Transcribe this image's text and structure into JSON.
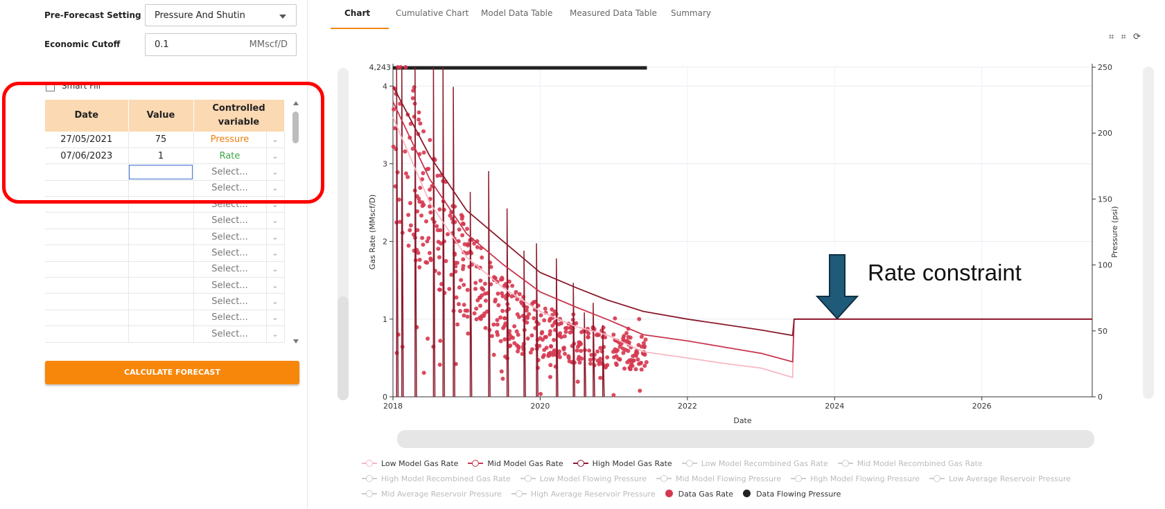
{
  "settings": {
    "pre_forecast_label": "Pre-Forecast Setting",
    "pre_forecast_value": "Pressure And Shutin",
    "economic_cutoff_label": "Economic Cutoff",
    "economic_cutoff_value": "0.1",
    "economic_cutoff_unit": "MMscf/D",
    "smart_fill_label": "Smart Fill"
  },
  "grid": {
    "headers": {
      "date": "Date",
      "value": "Value",
      "cv_line1": "Controlled",
      "cv_line2": "variable"
    },
    "rows": [
      {
        "date": "27/05/2021",
        "value": "75",
        "cv": "Pressure"
      },
      {
        "date": "07/06/2023",
        "value": "1",
        "cv": "Rate"
      },
      {
        "date": "",
        "value": "",
        "cv": "Select..."
      },
      {
        "date": "",
        "value": "",
        "cv": "Select..."
      },
      {
        "date": "",
        "value": "",
        "cv": "Select..."
      },
      {
        "date": "",
        "value": "",
        "cv": "Select..."
      },
      {
        "date": "",
        "value": "",
        "cv": "Select..."
      },
      {
        "date": "",
        "value": "",
        "cv": "Select..."
      },
      {
        "date": "",
        "value": "",
        "cv": "Select..."
      },
      {
        "date": "",
        "value": "",
        "cv": "Select..."
      },
      {
        "date": "",
        "value": "",
        "cv": "Select..."
      },
      {
        "date": "",
        "value": "",
        "cv": "Select..."
      },
      {
        "date": "",
        "value": "",
        "cv": "Select..."
      }
    ]
  },
  "calculate_button": "CALCULATE FORECAST",
  "tabs": [
    "Chart",
    "Cumulative Chart",
    "Model Data Table",
    "Measured Data Table",
    "Summary"
  ],
  "tool_icons": [
    "crop-icon",
    "crop-reset-icon",
    "refresh-icon"
  ],
  "annotation": "Rate constraint",
  "colors": {
    "accent": "#f7870a",
    "low": "#f7b7c2",
    "mid": "#c9364e",
    "high": "#8a1a2c",
    "data_gas": "#d6374f",
    "data_pressure": "#222222",
    "highlight_box": "#ff0000",
    "arrow": "#1f5a78"
  },
  "chart_data": {
    "type": "line",
    "xlabel": "Date",
    "ylabel_left": "Gas Rate (MMscf/D)",
    "ylabel_right": "Pressure (psi)",
    "x_ticks": [
      "2018",
      "2020",
      "2022",
      "2024",
      "2026"
    ],
    "y_left_ticks": [
      "0",
      "1",
      "2",
      "3",
      "4"
    ],
    "y_left_max_label": "4,243",
    "y_left_range": [
      0,
      4.243
    ],
    "y_right_ticks": [
      "0",
      "50",
      "100",
      "150",
      "200",
      "250"
    ],
    "y_right_range": [
      0,
      250
    ],
    "x_range": [
      2018.0,
      2027.5
    ],
    "series": [
      {
        "name": "Low Model Gas Rate",
        "color": "#f7b7c2",
        "points": [
          [
            2018.0,
            3.6
          ],
          [
            2018.5,
            2.5
          ],
          [
            2019.0,
            1.8
          ],
          [
            2019.5,
            1.4
          ],
          [
            2020.0,
            1.1
          ],
          [
            2020.5,
            0.9
          ],
          [
            2020.9,
            0.8
          ],
          [
            2021.4,
            0.58
          ],
          [
            2022.0,
            0.5
          ],
          [
            2022.5,
            0.43
          ],
          [
            2023.0,
            0.37
          ],
          [
            2023.43,
            0.25
          ],
          [
            2023.45,
            1.0
          ],
          [
            2027.5,
            1.0
          ]
        ]
      },
      {
        "name": "Mid Model Gas Rate",
        "color": "#c9364e",
        "points": [
          [
            2018.0,
            3.8
          ],
          [
            2018.5,
            2.8
          ],
          [
            2019.0,
            2.1
          ],
          [
            2019.5,
            1.7
          ],
          [
            2020.0,
            1.35
          ],
          [
            2020.5,
            1.15
          ],
          [
            2020.9,
            1.0
          ],
          [
            2021.4,
            0.8
          ],
          [
            2022.0,
            0.72
          ],
          [
            2022.5,
            0.64
          ],
          [
            2023.0,
            0.56
          ],
          [
            2023.43,
            0.45
          ],
          [
            2023.45,
            1.0
          ],
          [
            2027.5,
            1.0
          ]
        ]
      },
      {
        "name": "High Model Gas Rate",
        "color": "#8a1a2c",
        "points": [
          [
            2018.0,
            4.0
          ],
          [
            2018.5,
            3.1
          ],
          [
            2019.0,
            2.4
          ],
          [
            2019.5,
            2.0
          ],
          [
            2020.0,
            1.6
          ],
          [
            2020.5,
            1.4
          ],
          [
            2020.9,
            1.25
          ],
          [
            2021.4,
            1.1
          ],
          [
            2022.0,
            1.0
          ],
          [
            2022.5,
            0.93
          ],
          [
            2023.0,
            0.86
          ],
          [
            2023.43,
            0.79
          ],
          [
            2023.45,
            1.0
          ],
          [
            2027.5,
            1.0
          ]
        ]
      }
    ],
    "legend": [
      {
        "label": "Low Model Gas Rate",
        "state": "on",
        "kind": "low"
      },
      {
        "label": "Mid Model Gas Rate",
        "state": "on",
        "kind": "mid"
      },
      {
        "label": "High Model Gas Rate",
        "state": "on",
        "kind": "high"
      },
      {
        "label": "Low Model Recombined Gas Rate",
        "state": "off",
        "kind": "off"
      },
      {
        "label": "Mid Model Recombined Gas Rate",
        "state": "off",
        "kind": "off"
      },
      {
        "label": "High Model Recombined Gas Rate",
        "state": "off",
        "kind": "off"
      },
      {
        "label": "Low Model Flowing Pressure",
        "state": "off",
        "kind": "off"
      },
      {
        "label": "Mid Model Flowing Pressure",
        "state": "off",
        "kind": "off"
      },
      {
        "label": "High Model Flowing Pressure",
        "state": "off",
        "kind": "off"
      },
      {
        "label": "Low Average Reservoir Pressure",
        "state": "off",
        "kind": "off"
      },
      {
        "label": "Mid Average Reservoir Pressure",
        "state": "off",
        "kind": "off"
      },
      {
        "label": "High Average Reservoir Pressure",
        "state": "off",
        "kind": "off"
      },
      {
        "label": "Data Gas Rate",
        "state": "on",
        "kind": "dot-gas"
      },
      {
        "label": "Data Flowing Pressure",
        "state": "on",
        "kind": "dot-pressure"
      }
    ]
  }
}
